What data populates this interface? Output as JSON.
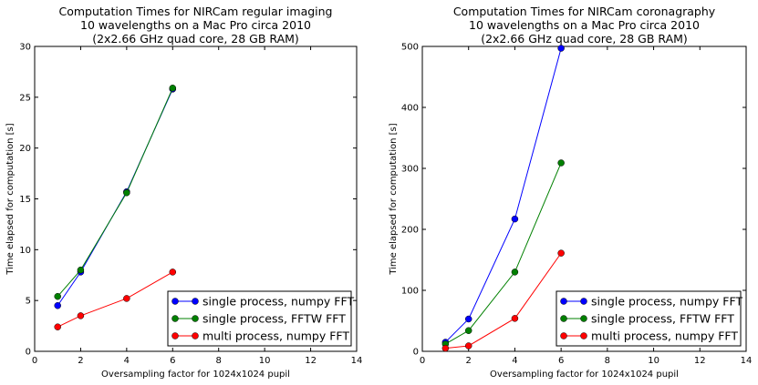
{
  "chart_data": [
    {
      "type": "line",
      "title_lines": [
        "Computation Times for NIRCam regular imaging",
        "10 wavelengths on a Mac Pro circa 2010",
        "(2x2.66 GHz quad core, 28 GB RAM)"
      ],
      "xlabel": "Oversampling factor for 1024x1024 pupil",
      "ylabel": "Time elapsed for computation [s]",
      "xlim": [
        0,
        14
      ],
      "ylim": [
        0,
        30
      ],
      "xticks": [
        0,
        2,
        4,
        6,
        8,
        10,
        12,
        14
      ],
      "yticks": [
        0,
        5,
        10,
        15,
        20,
        25,
        30
      ],
      "grid": false,
      "legend_position": "bottom-right",
      "series": [
        {
          "name": "single process, numpy FFT",
          "color": "#0000ff",
          "x": [
            1,
            2,
            4,
            6
          ],
          "y": [
            4.5,
            7.8,
            15.7,
            25.8
          ]
        },
        {
          "name": "single process, FFTW FFT",
          "color": "#008000",
          "x": [
            1,
            2,
            4,
            6
          ],
          "y": [
            5.4,
            8.0,
            15.6,
            25.9
          ]
        },
        {
          "name": "multi process, numpy FFT",
          "color": "#ff0000",
          "x": [
            1,
            2,
            4,
            6
          ],
          "y": [
            2.4,
            3.5,
            5.2,
            7.8
          ]
        }
      ]
    },
    {
      "type": "line",
      "title_lines": [
        "Computation Times for NIRCam coronagraphy",
        "10 wavelengths on a Mac Pro circa 2010",
        "(2x2.66 GHz quad core, 28 GB RAM)"
      ],
      "xlabel": "Oversampling factor for 1024x1024 pupil",
      "ylabel": "Time elapsed for computation [s]",
      "xlim": [
        0,
        14
      ],
      "ylim": [
        0,
        500
      ],
      "xticks": [
        0,
        2,
        4,
        6,
        8,
        10,
        12,
        14
      ],
      "yticks": [
        0,
        100,
        200,
        300,
        400,
        500
      ],
      "grid": false,
      "legend_position": "bottom-right",
      "series": [
        {
          "name": "single process, numpy FFT",
          "color": "#0000ff",
          "x": [
            1,
            2,
            4,
            6
          ],
          "y": [
            15,
            53,
            217,
            497
          ]
        },
        {
          "name": "single process, FFTW FFT",
          "color": "#008000",
          "x": [
            1,
            2,
            4,
            6
          ],
          "y": [
            12,
            34,
            130,
            309
          ]
        },
        {
          "name": "multi process, numpy FFT",
          "color": "#ff0000",
          "x": [
            1,
            2,
            4,
            6
          ],
          "y": [
            5,
            9,
            54,
            161
          ]
        }
      ]
    }
  ]
}
